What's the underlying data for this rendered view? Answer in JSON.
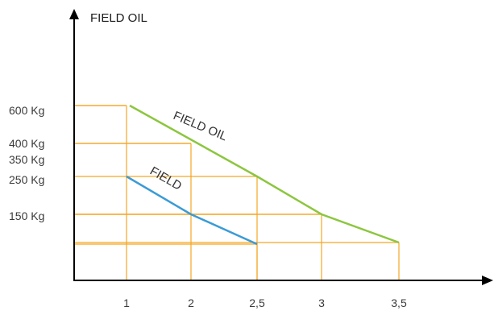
{
  "chart_data": {
    "type": "line",
    "ylabel": "FIELD OIL",
    "xlabel": "",
    "x_ticks": [
      {
        "value": 1,
        "label": "1"
      },
      {
        "value": 2,
        "label": "2"
      },
      {
        "value": 2.5,
        "label": "2,5"
      },
      {
        "value": 3,
        "label": "3"
      },
      {
        "value": 3.5,
        "label": "3,5"
      }
    ],
    "y_ticks": [
      {
        "value": 600,
        "label": "600 Kg"
      },
      {
        "value": 400,
        "label": "400 Kg"
      },
      {
        "value": 350,
        "label": "350 Kg"
      },
      {
        "value": 250,
        "label": "250 Kg"
      },
      {
        "value": 150,
        "label": "150 Kg"
      }
    ],
    "xlim": [
      0.2,
      4.4
    ],
    "ylim": [
      0,
      850
    ],
    "grid": false,
    "series": [
      {
        "name": "FIELD OIL",
        "color": "#8cc63f",
        "points": [
          {
            "x": 1.05,
            "y": 600
          },
          {
            "x": 2.5,
            "y": 350
          },
          {
            "x": 3,
            "y": 250
          },
          {
            "x": 3.5,
            "y": 85
          }
        ]
      },
      {
        "name": "FIELD",
        "color": "#3b9bd6",
        "points": [
          {
            "x": 1,
            "y": 350
          },
          {
            "x": 2,
            "y": 250
          },
          {
            "x": 2.5,
            "y": 140
          }
        ]
      }
    ],
    "guide_color": "#f5a623",
    "guides": [
      {
        "x": 1,
        "y": 600
      },
      {
        "x": 2,
        "y": 400
      },
      {
        "x": 2.5,
        "y": 350
      },
      {
        "x": 3,
        "y": 250
      },
      {
        "x": 3.5,
        "y": 85
      },
      {
        "x": 2.5,
        "y": 140
      }
    ]
  }
}
